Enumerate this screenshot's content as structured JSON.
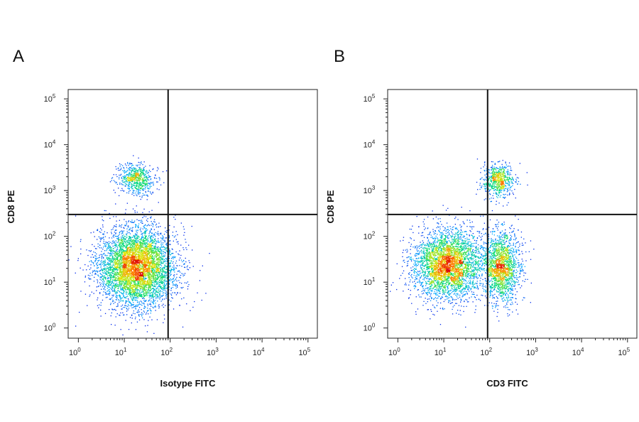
{
  "chart_data": [
    {
      "type": "scatter",
      "panel_label": "A",
      "xlabel": "Isotype FITC",
      "ylabel": "CD8 PE",
      "x_scale": "log",
      "y_scale": "log",
      "xlim": [
        0.6,
        160000
      ],
      "ylim": [
        0.6,
        160000
      ],
      "x_ticks": [
        1,
        10,
        100,
        1000,
        10000,
        100000
      ],
      "y_ticks": [
        1,
        10,
        100,
        1000,
        10000,
        100000
      ],
      "gates": {
        "x": 90,
        "y": 300
      },
      "populations": [
        {
          "name": "",
          "center": [
            18,
            22
          ],
          "log_spread": [
            0.42,
            0.42
          ],
          "count": 5200
        },
        {
          "name": "",
          "center": [
            18,
            1800
          ],
          "log_spread": [
            0.2,
            0.16
          ],
          "count": 650
        }
      ]
    },
    {
      "type": "scatter",
      "panel_label": "B",
      "xlabel": "CD3 FITC",
      "ylabel": "CD8 PE",
      "x_scale": "log",
      "y_scale": "log",
      "xlim": [
        0.6,
        160000
      ],
      "ylim": [
        0.6,
        160000
      ],
      "x_ticks": [
        1,
        10,
        100,
        1000,
        10000,
        100000
      ],
      "y_ticks": [
        1,
        10,
        100,
        1000,
        10000,
        100000
      ],
      "gates": {
        "x": 90,
        "y": 300
      },
      "populations": [
        {
          "name": "",
          "center": [
            12,
            25
          ],
          "log_spread": [
            0.38,
            0.38
          ],
          "count": 3600
        },
        {
          "name": "",
          "center": [
            180,
            22
          ],
          "log_spread": [
            0.2,
            0.38
          ],
          "count": 1700
        },
        {
          "name": "",
          "center": [
            150,
            1700
          ],
          "log_spread": [
            0.17,
            0.18
          ],
          "count": 650
        }
      ]
    }
  ]
}
